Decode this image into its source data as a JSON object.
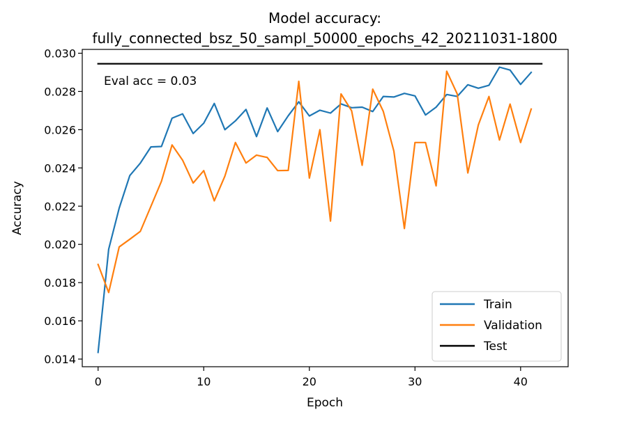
{
  "chart_data": {
    "type": "line",
    "title_line1": "Model accuracy:",
    "title_line2": "fully_connected_bsz_50_sampl_50000_epochs_42_20211031-1800",
    "xlabel": "Epoch",
    "ylabel": "Accuracy",
    "xlim": [
      -1.5,
      44.5
    ],
    "ylim": [
      0.0136,
      0.0302
    ],
    "xticks": [
      0,
      10,
      20,
      30,
      40
    ],
    "yticks": [
      0.014,
      0.016,
      0.018,
      0.02,
      0.022,
      0.024,
      0.026,
      0.028,
      0.03
    ],
    "ytick_labels": [
      "0.014",
      "0.016",
      "0.018",
      "0.020",
      "0.022",
      "0.024",
      "0.026",
      "0.028",
      "0.030"
    ],
    "grid": false,
    "legend_position": "lower-right",
    "annotation": "Eval acc = 0.03",
    "series": [
      {
        "name": "Train",
        "color": "#1f77b4",
        "x": [
          0,
          1,
          2,
          3,
          4,
          5,
          6,
          7,
          8,
          9,
          10,
          11,
          12,
          13,
          14,
          15,
          16,
          17,
          18,
          19,
          20,
          21,
          22,
          23,
          24,
          25,
          26,
          27,
          28,
          29,
          30,
          31,
          32,
          33,
          34,
          35,
          36,
          37,
          38,
          39,
          40,
          41
        ],
        "values": [
          0.01435,
          0.01975,
          0.0219,
          0.0236,
          0.02425,
          0.0251,
          0.02512,
          0.0266,
          0.02683,
          0.0258,
          0.02634,
          0.02737,
          0.026,
          0.02646,
          0.02706,
          0.02564,
          0.02714,
          0.0259,
          0.02673,
          0.02746,
          0.02672,
          0.02702,
          0.02687,
          0.02735,
          0.02715,
          0.02718,
          0.02695,
          0.02774,
          0.02771,
          0.0279,
          0.02777,
          0.02677,
          0.02718,
          0.02784,
          0.02774,
          0.02835,
          0.02817,
          0.02832,
          0.02927,
          0.02912,
          0.02837,
          0.029
        ]
      },
      {
        "name": "Validation",
        "color": "#ff7f0e",
        "x": [
          0,
          1,
          2,
          3,
          4,
          5,
          6,
          7,
          8,
          9,
          10,
          11,
          12,
          13,
          14,
          15,
          16,
          17,
          18,
          19,
          20,
          21,
          22,
          23,
          24,
          25,
          26,
          27,
          28,
          29,
          30,
          31,
          32,
          33,
          34,
          35,
          36,
          37,
          38,
          39,
          40,
          41
        ],
        "values": [
          0.01895,
          0.01748,
          0.01987,
          0.02027,
          0.02068,
          0.02199,
          0.0233,
          0.0252,
          0.02441,
          0.02321,
          0.02386,
          0.02228,
          0.02357,
          0.02533,
          0.02426,
          0.02467,
          0.02455,
          0.02386,
          0.02387,
          0.02853,
          0.02347,
          0.026,
          0.02122,
          0.02787,
          0.02699,
          0.02414,
          0.02812,
          0.02696,
          0.02488,
          0.02083,
          0.02533,
          0.02533,
          0.02306,
          0.02906,
          0.02787,
          0.02374,
          0.02625,
          0.02774,
          0.02546,
          0.02734,
          0.02533,
          0.02708
        ]
      },
      {
        "name": "Test",
        "color": "#000000",
        "x": [
          0,
          42
        ],
        "values": [
          0.02945,
          0.02945
        ]
      }
    ]
  }
}
